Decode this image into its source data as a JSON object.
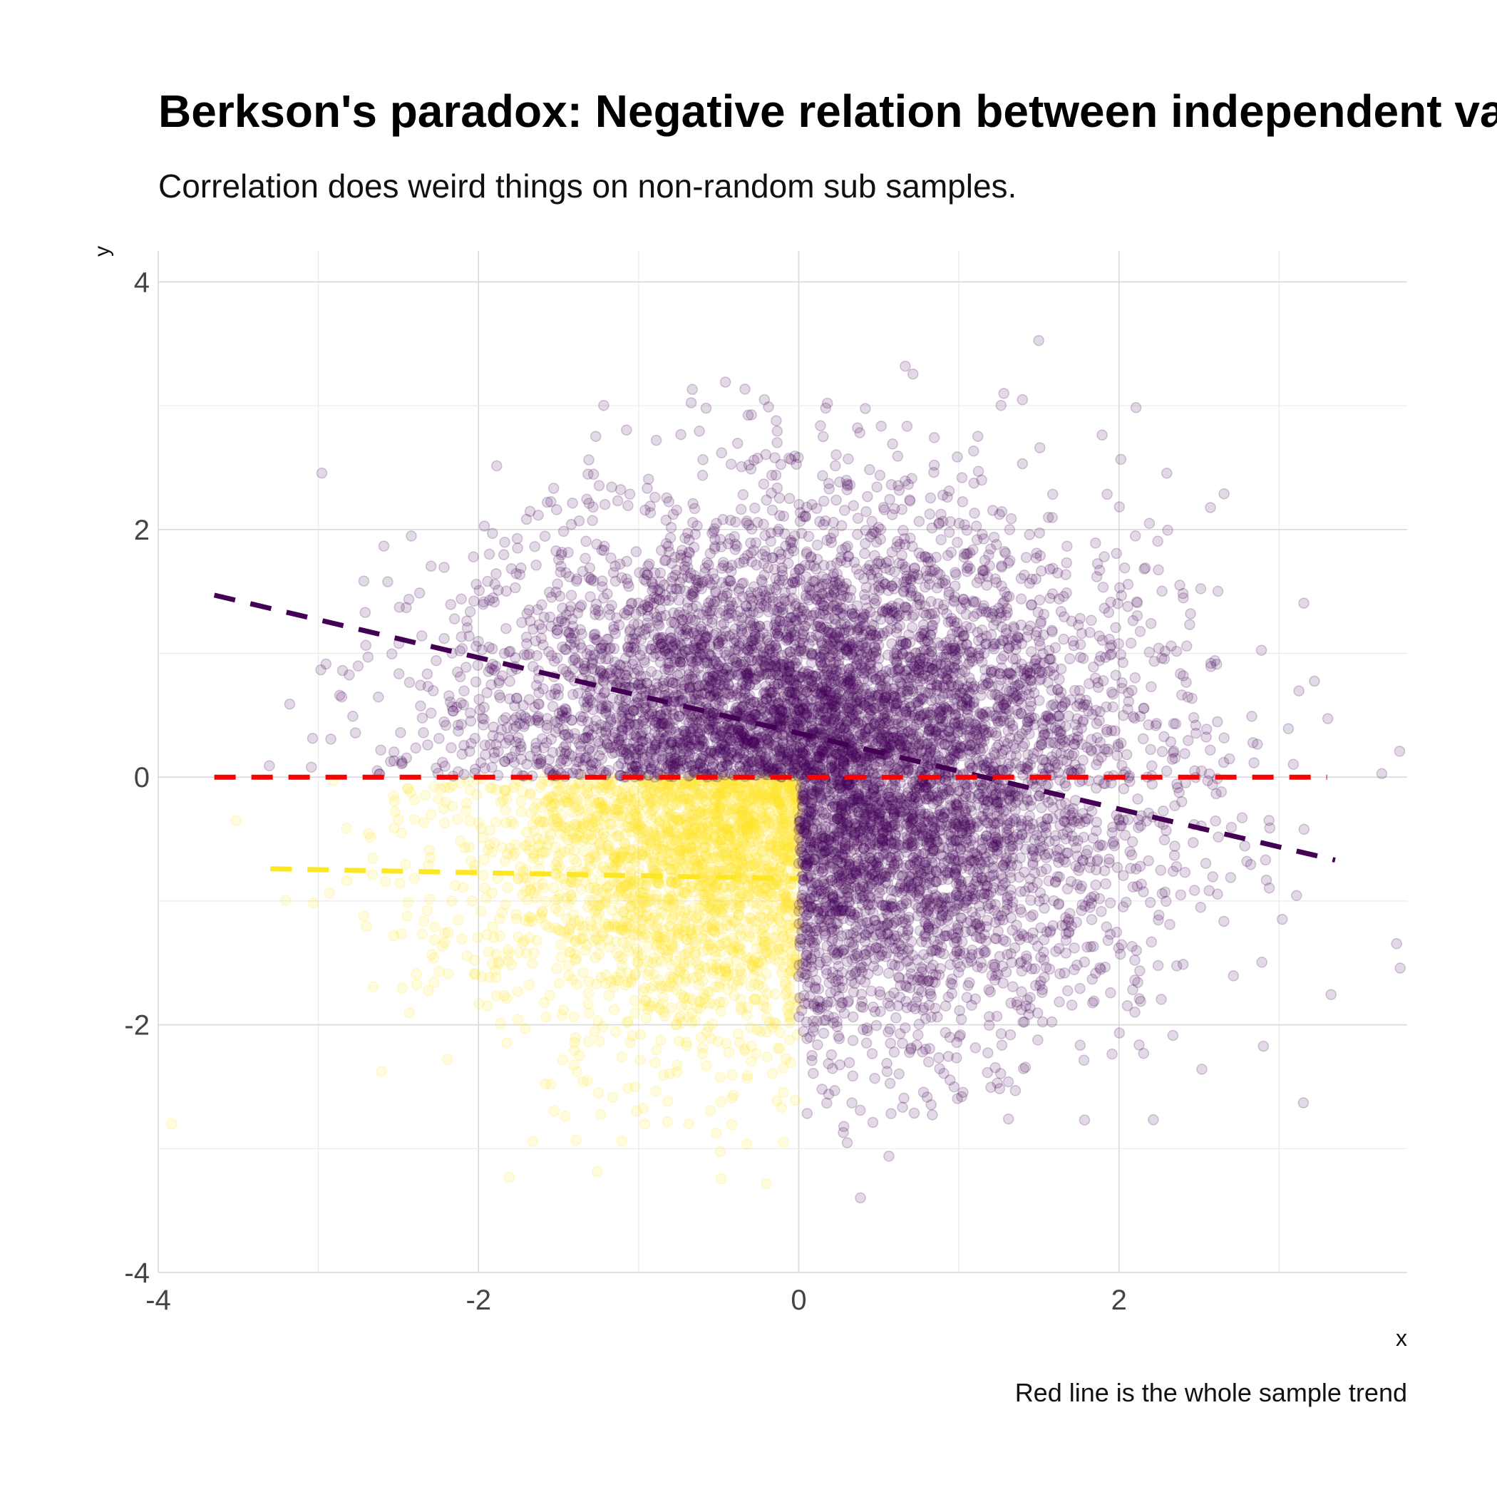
{
  "chart_data": {
    "type": "scatter",
    "title": "Berkson's paradox: Negative relation between independent vars",
    "subtitle": "Correlation does weird things on non-random sub samples.",
    "xlabel": "x",
    "ylabel": "y",
    "caption": "Red line is the whole sample trend",
    "xlim": [
      -4,
      3.8
    ],
    "ylim": [
      -4,
      4.25
    ],
    "x_ticks": [
      -4,
      -2,
      0,
      2
    ],
    "y_ticks": [
      -4,
      -2,
      0,
      2,
      4
    ],
    "grid": true,
    "legend": "none",
    "series": [
      {
        "group": "selected",
        "color": "#440154",
        "opacity": 0.15,
        "n_points": 7500,
        "distribution": "standard normal x and y, excluding x < 0 and y < 0"
      },
      {
        "group": "excluded",
        "color": "#FDE725",
        "opacity": 0.15,
        "n_points": 2500,
        "distribution": "standard normal x and y, x < 0 and y < 0"
      }
    ],
    "trend_lines": [
      {
        "group": "selected",
        "color": "#440154",
        "dash": "dashed",
        "x": [
          -3.65,
          3.35
        ],
        "y": [
          1.47,
          -0.67
        ]
      },
      {
        "group": "excluded",
        "color": "#FDE725",
        "dash": "dashed",
        "x": [
          -3.3,
          0
        ],
        "y": [
          -0.74,
          -0.82
        ]
      },
      {
        "group": "whole sample",
        "color": "#FF0000",
        "dash": "dashed",
        "x": [
          -3.65,
          3.3
        ],
        "y": [
          0.0,
          0.0
        ]
      }
    ]
  }
}
